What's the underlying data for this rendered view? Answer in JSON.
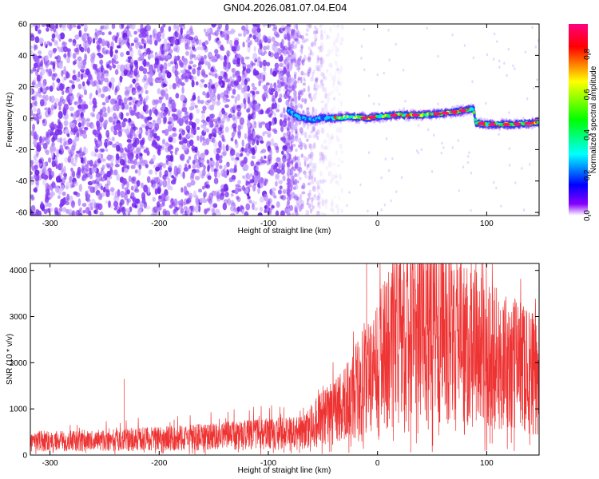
{
  "figure_title": "GN04.2026.081.07.04.E04",
  "colors": {
    "snr_line": "#ee3333",
    "spec_purple": "#7b2cf0",
    "spec_light": "#d6b8ff",
    "frame": "#000000"
  },
  "chart_data": [
    {
      "id": "spectrogram",
      "type": "heatmap",
      "title": "",
      "xlabel": "Height of straight line (km)",
      "ylabel": "Frequency (Hz)",
      "xlim": [
        -318,
        148
      ],
      "ylim": [
        -62,
        60
      ],
      "xticks": [
        -300,
        -200,
        -100,
        0,
        100
      ],
      "yticks": [
        60,
        40,
        20,
        0,
        -20,
        -40,
        -60
      ],
      "colorbar": {
        "label": "Normalized spectral amplitude",
        "range": [
          0.0,
          0.95
        ],
        "ticks": [
          0.0,
          0.2,
          0.4,
          0.6,
          0.8
        ],
        "colormap": [
          "#ff00ff",
          "#ff0000",
          "#ffff00",
          "#00ff00",
          "#00ffff",
          "#0000ff",
          "#8000ff",
          "#ffffff"
        ]
      },
      "noise_region_km": [
        -318,
        -40
      ],
      "signal_track": {
        "x_km": [
          -82,
          -70,
          -60,
          -50,
          -40,
          -25,
          -10,
          0,
          20,
          40,
          60,
          80,
          88,
          90,
          100,
          120,
          148
        ],
        "freq_hz": [
          5,
          0,
          -1,
          0,
          0,
          1,
          0,
          1,
          2,
          2,
          3,
          5,
          6,
          -3,
          -4,
          -4,
          -3
        ]
      }
    },
    {
      "id": "snr",
      "type": "line",
      "title": "",
      "xlabel": "Height of straight line (km)",
      "ylabel": "SNR (10 * v/v)",
      "xlim": [
        -318,
        148
      ],
      "ylim": [
        0,
        4150
      ],
      "xticks": [
        -300,
        -200,
        -100,
        0,
        100
      ],
      "yticks": [
        0,
        1000,
        2000,
        3000,
        4000
      ],
      "series": [
        {
          "name": "SNR",
          "x_km": [
            -318,
            -250,
            -200,
            -150,
            -100,
            -70,
            -60,
            -50,
            -40,
            -30,
            -20,
            -10,
            0,
            10,
            20,
            30,
            40,
            50,
            60,
            70,
            80,
            90,
            100,
            110,
            120,
            130,
            140,
            148
          ],
          "mean": [
            300,
            320,
            350,
            400,
            450,
            500,
            650,
            800,
            900,
            1100,
            1400,
            1700,
            2000,
            2300,
            2550,
            2750,
            2850,
            2800,
            2700,
            2550,
            2400,
            2300,
            2200,
            2100,
            2000,
            1900,
            1800,
            1700
          ],
          "peak_max": 4150
        }
      ]
    }
  ]
}
